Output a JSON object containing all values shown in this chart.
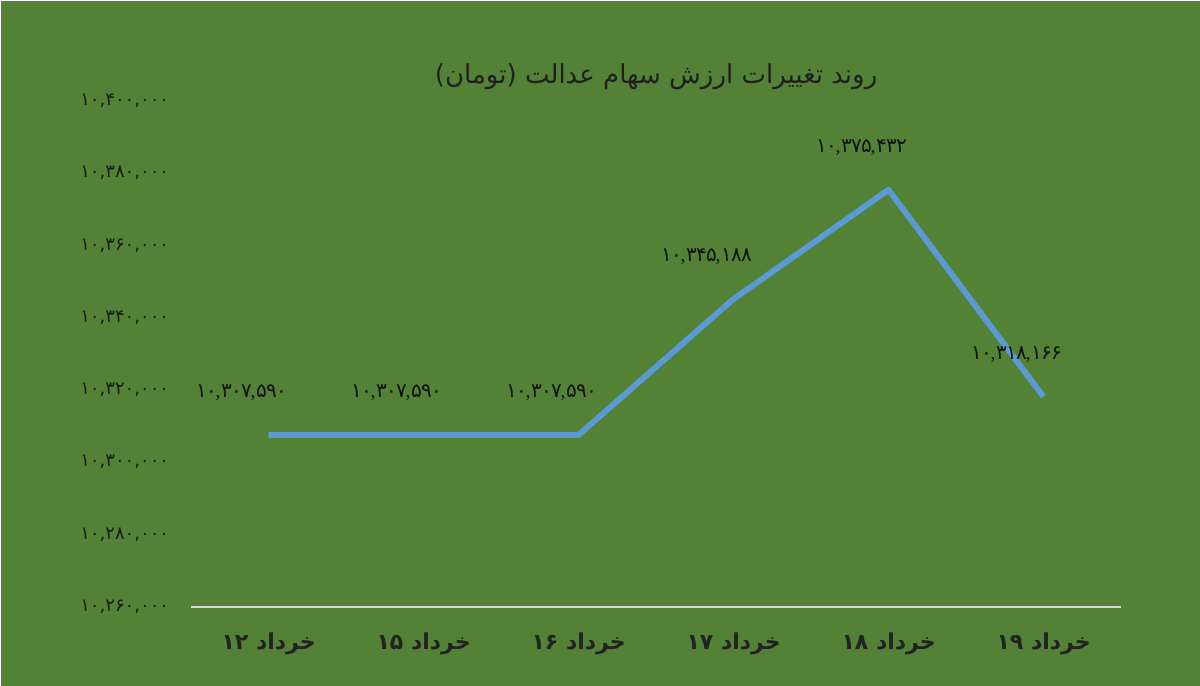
{
  "chart_data": {
    "type": "line",
    "title": "روند تغییرات ارزش سهام عدالت (تومان)",
    "categories": [
      "۱۲ خرداد",
      "۱۵ خرداد",
      "۱۶ خرداد",
      "۱۷ خرداد",
      "۱۸ خرداد",
      "۱۹ خرداد"
    ],
    "series": [
      {
        "color": "#5b9bd5",
        "values": [
          10307590,
          10307590,
          10307590,
          10345188,
          10375432,
          10318166
        ],
        "value_labels": [
          "۱۰,۳۰۷,۵۹۰",
          "۱۰,۳۰۷,۵۹۰",
          "۱۰,۳۰۷,۵۹۰",
          "۱۰,۳۴۵,۱۸۸",
          "۱۰,۳۷۵,۴۳۲",
          "۱۰,۳۱۸,۱۶۶"
        ]
      }
    ],
    "ylim": [
      10260000,
      10400000
    ],
    "yticks": [
      {
        "value": 10260000,
        "label": "۱۰,۲۶۰,۰۰۰"
      },
      {
        "value": 10280000,
        "label": "۱۰,۲۸۰,۰۰۰"
      },
      {
        "value": 10300000,
        "label": "۱۰,۳۰۰,۰۰۰"
      },
      {
        "value": 10320000,
        "label": "۱۰,۳۲۰,۰۰۰"
      },
      {
        "value": 10340000,
        "label": "۱۰,۳۴۰,۰۰۰"
      },
      {
        "value": 10360000,
        "label": "۱۰,۳۶۰,۰۰۰"
      },
      {
        "value": 10380000,
        "label": "۱۰,۳۸۰,۰۰۰"
      },
      {
        "value": 10400000,
        "label": "۱۰,۴۰۰,۰۰۰"
      }
    ],
    "grid": false,
    "marker": "none",
    "line_style": "solid"
  }
}
